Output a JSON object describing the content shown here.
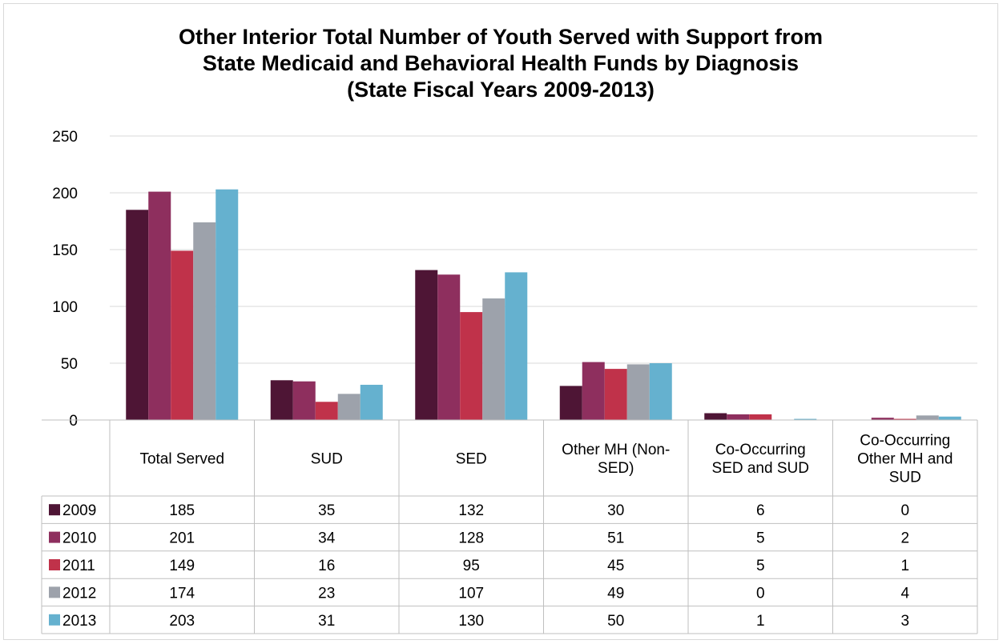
{
  "chart_data": {
    "type": "bar",
    "title_lines": [
      "Other Interior Total Number of Youth Served with Support from",
      "State Medicaid and Behavioral Health Funds by Diagnosis",
      "(State Fiscal Years 2009-2013)"
    ],
    "categories": [
      "Total Served",
      "SUD",
      "SED",
      "Other MH (Non-SED)",
      "Co-Occurring SED and SUD",
      "Co-Occurring Other MH and SUD"
    ],
    "category_label_lines": [
      [
        "Total Served"
      ],
      [
        "SUD"
      ],
      [
        "SED"
      ],
      [
        "Other MH (Non-",
        "SED)"
      ],
      [
        "Co-Occurring",
        "SED and SUD"
      ],
      [
        "Co-Occurring",
        "Other MH and",
        "SUD"
      ]
    ],
    "series": [
      {
        "name": "2009",
        "color": "#4e1535",
        "values": [
          185,
          35,
          132,
          30,
          6,
          0
        ]
      },
      {
        "name": "2010",
        "color": "#8e2f5e",
        "values": [
          201,
          34,
          128,
          51,
          5,
          2
        ]
      },
      {
        "name": "2011",
        "color": "#c0324a",
        "values": [
          149,
          16,
          95,
          45,
          5,
          1
        ]
      },
      {
        "name": "2012",
        "color": "#9da2ab",
        "values": [
          174,
          23,
          107,
          49,
          0,
          4
        ]
      },
      {
        "name": "2013",
        "color": "#65b1cf",
        "values": [
          203,
          31,
          130,
          50,
          1,
          3
        ]
      }
    ],
    "table_values": [
      [
        "185",
        "35",
        "132",
        "30",
        "6",
        "0"
      ],
      [
        "201",
        "34",
        "128",
        "51",
        "5",
        "2"
      ],
      [
        "149",
        "16",
        "95",
        "45",
        "5",
        "1"
      ],
      [
        "174",
        "23",
        "107",
        "49",
        "0",
        "4"
      ],
      [
        "203",
        "31",
        "130",
        "50",
        "1",
        "3"
      ]
    ],
    "y_ticks": [
      "0",
      "50",
      "100",
      "150",
      "200",
      "250"
    ],
    "ylim": [
      0,
      250
    ],
    "grid": true,
    "legend": "data-table-left"
  }
}
